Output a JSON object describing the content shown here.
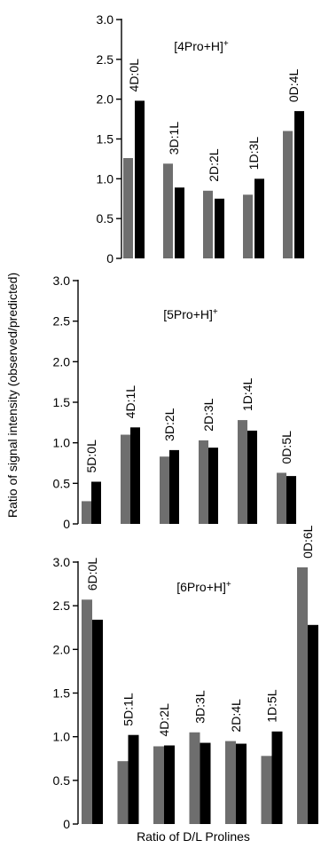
{
  "chart_data": {
    "type": "bar",
    "ylabel": "Ratio of signal intensity (observed/predicted)",
    "xlabel": "Ratio of D/L Prolines",
    "colors": {
      "series_a": "#6e6e6e",
      "series_b": "#000000",
      "axis": "#000000"
    },
    "panels": [
      {
        "title": "[4Pro+H]",
        "title_sup": "+",
        "ylim": [
          0,
          3.0
        ],
        "yticks": [
          "0",
          "0.5",
          "1.0",
          "1.5",
          "2.0",
          "2.5",
          "3.0"
        ],
        "categories": [
          "4D:0L",
          "3D:1L",
          "2D:2L",
          "1D:3L",
          "0D:4L"
        ],
        "series": [
          {
            "values": [
              1.26,
              1.19,
              0.85,
              0.8,
              1.6
            ]
          },
          {
            "values": [
              1.98,
              0.89,
              0.75,
              1.0,
              1.85
            ]
          }
        ]
      },
      {
        "title": "[5Pro+H]",
        "title_sup": "+",
        "ylim": [
          0,
          3.0
        ],
        "yticks": [
          "0",
          "0.5",
          "1.0",
          "1.5",
          "2.0",
          "2.5",
          "3.0"
        ],
        "categories": [
          "5D:0L",
          "4D:1L",
          "3D:2L",
          "2D:3L",
          "1D:4L",
          "0D:5L"
        ],
        "series": [
          {
            "values": [
              0.28,
              1.1,
              0.83,
              1.03,
              1.28,
              0.63
            ]
          },
          {
            "values": [
              0.52,
              1.19,
              0.91,
              0.94,
              1.15,
              0.59
            ]
          }
        ]
      },
      {
        "title": "[6Pro+H]",
        "title_sup": "+",
        "ylim": [
          0,
          3.0
        ],
        "yticks": [
          "0",
          "0.5",
          "1.0",
          "1.5",
          "2.0",
          "2.5",
          "3.0"
        ],
        "categories": [
          "6D:0L",
          "5D:1L",
          "4D:2L",
          "3D:3L",
          "2D:4L",
          "1D:5L",
          "0D:6L"
        ],
        "series": [
          {
            "values": [
              2.57,
              0.72,
              0.89,
              1.05,
              0.95,
              0.78,
              2.94
            ]
          },
          {
            "values": [
              2.34,
              1.02,
              0.9,
              0.93,
              0.92,
              1.06,
              2.28
            ]
          }
        ]
      }
    ]
  }
}
